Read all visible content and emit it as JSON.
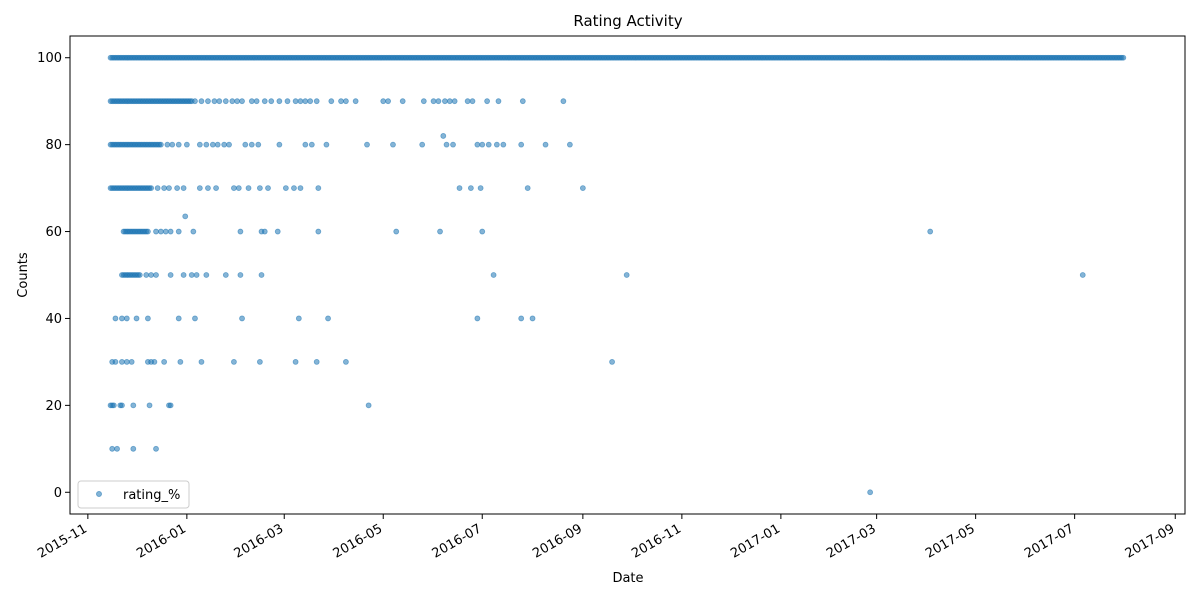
{
  "chart_data": {
    "type": "scatter",
    "title": "Rating Activity",
    "xlabel": "Date",
    "ylabel": "Counts",
    "x_axis_kind": "date",
    "xlim": [
      "2015-10-21",
      "2017-09-07"
    ],
    "ylim": [
      -5,
      105
    ],
    "x_ticks": [
      "2015-11",
      "2016-01",
      "2016-03",
      "2016-05",
      "2016-07",
      "2016-09",
      "2016-11",
      "2017-01",
      "2017-03",
      "2017-05",
      "2017-07",
      "2017-09"
    ],
    "y_ticks": [
      0,
      20,
      40,
      60,
      80,
      100
    ],
    "grid": false,
    "legend_position": "lower-left",
    "series": [
      {
        "name": "rating_%",
        "color": "#1f77b4",
        "marker": "circle",
        "alpha": 0.55,
        "dense_ranges": [
          {
            "y": 100,
            "from": "2015-11-15",
            "to": "2017-07-31"
          },
          {
            "y": 90,
            "from": "2015-11-15",
            "to": "2016-01-04"
          },
          {
            "y": 80,
            "from": "2015-11-15",
            "to": "2015-12-16"
          },
          {
            "y": 70,
            "from": "2015-11-15",
            "to": "2015-12-10"
          },
          {
            "y": 60,
            "from": "2015-11-23",
            "to": "2015-12-08"
          },
          {
            "y": 50,
            "from": "2015-11-22",
            "to": "2015-12-03"
          }
        ],
        "points": [
          [
            "2016-01-06",
            90
          ],
          [
            "2016-01-10",
            90
          ],
          [
            "2016-01-14",
            90
          ],
          [
            "2016-01-18",
            90
          ],
          [
            "2016-01-21",
            90
          ],
          [
            "2016-01-25",
            90
          ],
          [
            "2016-01-29",
            90
          ],
          [
            "2016-02-01",
            90
          ],
          [
            "2016-02-04",
            90
          ],
          [
            "2016-02-10",
            90
          ],
          [
            "2016-02-13",
            90
          ],
          [
            "2016-02-18",
            90
          ],
          [
            "2016-02-22",
            90
          ],
          [
            "2016-02-27",
            90
          ],
          [
            "2016-03-03",
            90
          ],
          [
            "2016-03-08",
            90
          ],
          [
            "2016-03-11",
            90
          ],
          [
            "2016-03-14",
            90
          ],
          [
            "2016-03-17",
            90
          ],
          [
            "2016-03-21",
            90
          ],
          [
            "2016-03-30",
            90
          ],
          [
            "2016-04-05",
            90
          ],
          [
            "2016-04-08",
            90
          ],
          [
            "2016-04-14",
            90
          ],
          [
            "2016-05-01",
            90
          ],
          [
            "2016-05-04",
            90
          ],
          [
            "2016-05-13",
            90
          ],
          [
            "2016-05-26",
            90
          ],
          [
            "2016-06-01",
            90
          ],
          [
            "2016-06-04",
            90
          ],
          [
            "2016-06-08",
            90
          ],
          [
            "2016-06-11",
            90
          ],
          [
            "2016-06-14",
            90
          ],
          [
            "2016-06-22",
            90
          ],
          [
            "2016-06-25",
            90
          ],
          [
            "2016-07-04",
            90
          ],
          [
            "2016-07-11",
            90
          ],
          [
            "2016-07-26",
            90
          ],
          [
            "2016-08-20",
            90
          ],
          [
            "2015-12-20",
            80
          ],
          [
            "2015-12-23",
            80
          ],
          [
            "2015-12-27",
            80
          ],
          [
            "2016-01-01",
            80
          ],
          [
            "2016-01-09",
            80
          ],
          [
            "2016-01-13",
            80
          ],
          [
            "2016-01-17",
            80
          ],
          [
            "2016-01-20",
            80
          ],
          [
            "2016-01-24",
            80
          ],
          [
            "2016-01-27",
            80
          ],
          [
            "2016-02-06",
            80
          ],
          [
            "2016-02-10",
            80
          ],
          [
            "2016-02-14",
            80
          ],
          [
            "2016-02-27",
            80
          ],
          [
            "2016-03-14",
            80
          ],
          [
            "2016-03-18",
            80
          ],
          [
            "2016-03-27",
            80
          ],
          [
            "2016-04-21",
            80
          ],
          [
            "2016-05-07",
            80
          ],
          [
            "2016-05-25",
            80
          ],
          [
            "2016-06-09",
            80
          ],
          [
            "2016-06-13",
            80
          ],
          [
            "2016-06-07",
            82
          ],
          [
            "2016-06-28",
            80
          ],
          [
            "2016-07-01",
            80
          ],
          [
            "2016-07-05",
            80
          ],
          [
            "2016-07-10",
            80
          ],
          [
            "2016-07-14",
            80
          ],
          [
            "2016-07-25",
            80
          ],
          [
            "2016-08-09",
            80
          ],
          [
            "2016-08-24",
            80
          ],
          [
            "2015-12-14",
            70
          ],
          [
            "2015-12-18",
            70
          ],
          [
            "2015-12-21",
            70
          ],
          [
            "2015-12-26",
            70
          ],
          [
            "2015-12-30",
            70
          ],
          [
            "2016-01-09",
            70
          ],
          [
            "2016-01-14",
            70
          ],
          [
            "2016-01-19",
            70
          ],
          [
            "2016-01-30",
            70
          ],
          [
            "2016-02-02",
            70
          ],
          [
            "2016-02-08",
            70
          ],
          [
            "2016-02-15",
            70
          ],
          [
            "2016-02-20",
            70
          ],
          [
            "2016-03-02",
            70
          ],
          [
            "2016-03-07",
            70
          ],
          [
            "2016-03-11",
            70
          ],
          [
            "2016-03-22",
            70
          ],
          [
            "2016-06-17",
            70
          ],
          [
            "2016-06-24",
            70
          ],
          [
            "2016-06-30",
            70
          ],
          [
            "2016-07-29",
            70
          ],
          [
            "2016-09-01",
            70
          ],
          [
            "2015-12-31",
            63.5
          ],
          [
            "2015-12-13",
            60
          ],
          [
            "2015-12-16",
            60
          ],
          [
            "2015-12-19",
            60
          ],
          [
            "2015-12-22",
            60
          ],
          [
            "2015-12-27",
            60
          ],
          [
            "2016-01-05",
            60
          ],
          [
            "2016-02-03",
            60
          ],
          [
            "2016-02-16",
            60
          ],
          [
            "2016-02-18",
            60
          ],
          [
            "2016-02-26",
            60
          ],
          [
            "2016-03-22",
            60
          ],
          [
            "2016-05-09",
            60
          ],
          [
            "2016-06-05",
            60
          ],
          [
            "2016-07-01",
            60
          ],
          [
            "2017-04-03",
            60
          ],
          [
            "2015-12-07",
            50
          ],
          [
            "2015-12-10",
            50
          ],
          [
            "2015-12-13",
            50
          ],
          [
            "2015-12-22",
            50
          ],
          [
            "2015-12-30",
            50
          ],
          [
            "2016-01-04",
            50
          ],
          [
            "2016-01-07",
            50
          ],
          [
            "2016-01-13",
            50
          ],
          [
            "2016-01-25",
            50
          ],
          [
            "2016-02-03",
            50
          ],
          [
            "2016-02-16",
            50
          ],
          [
            "2016-07-08",
            50
          ],
          [
            "2016-09-28",
            50
          ],
          [
            "2017-07-06",
            50
          ],
          [
            "2015-11-18",
            40
          ],
          [
            "2015-11-22",
            40
          ],
          [
            "2015-11-25",
            40
          ],
          [
            "2015-12-01",
            40
          ],
          [
            "2015-12-08",
            40
          ],
          [
            "2015-12-27",
            40
          ],
          [
            "2016-01-06",
            40
          ],
          [
            "2016-02-04",
            40
          ],
          [
            "2016-03-10",
            40
          ],
          [
            "2016-03-28",
            40
          ],
          [
            "2016-06-28",
            40
          ],
          [
            "2016-07-25",
            40
          ],
          [
            "2016-08-01",
            40
          ],
          [
            "2015-11-16",
            30
          ],
          [
            "2015-11-18",
            30
          ],
          [
            "2015-11-22",
            30
          ],
          [
            "2015-11-25",
            30
          ],
          [
            "2015-11-28",
            30
          ],
          [
            "2015-12-08",
            30
          ],
          [
            "2015-12-10",
            30
          ],
          [
            "2015-12-12",
            30
          ],
          [
            "2015-12-18",
            30
          ],
          [
            "2015-12-28",
            30
          ],
          [
            "2016-01-10",
            30
          ],
          [
            "2016-01-30",
            30
          ],
          [
            "2016-02-15",
            30
          ],
          [
            "2016-03-08",
            30
          ],
          [
            "2016-03-21",
            30
          ],
          [
            "2016-04-08",
            30
          ],
          [
            "2016-09-19",
            30
          ],
          [
            "2015-11-15",
            20
          ],
          [
            "2015-11-16",
            20
          ],
          [
            "2015-11-17",
            20
          ],
          [
            "2015-11-21",
            20
          ],
          [
            "2015-11-22",
            20
          ],
          [
            "2015-11-29",
            20
          ],
          [
            "2015-12-09",
            20
          ],
          [
            "2015-12-21",
            20
          ],
          [
            "2015-12-22",
            20
          ],
          [
            "2016-04-22",
            20
          ],
          [
            "2015-11-16",
            10
          ],
          [
            "2015-11-19",
            10
          ],
          [
            "2015-11-29",
            10
          ],
          [
            "2015-12-13",
            10
          ],
          [
            "2017-02-25",
            0
          ]
        ]
      }
    ]
  }
}
